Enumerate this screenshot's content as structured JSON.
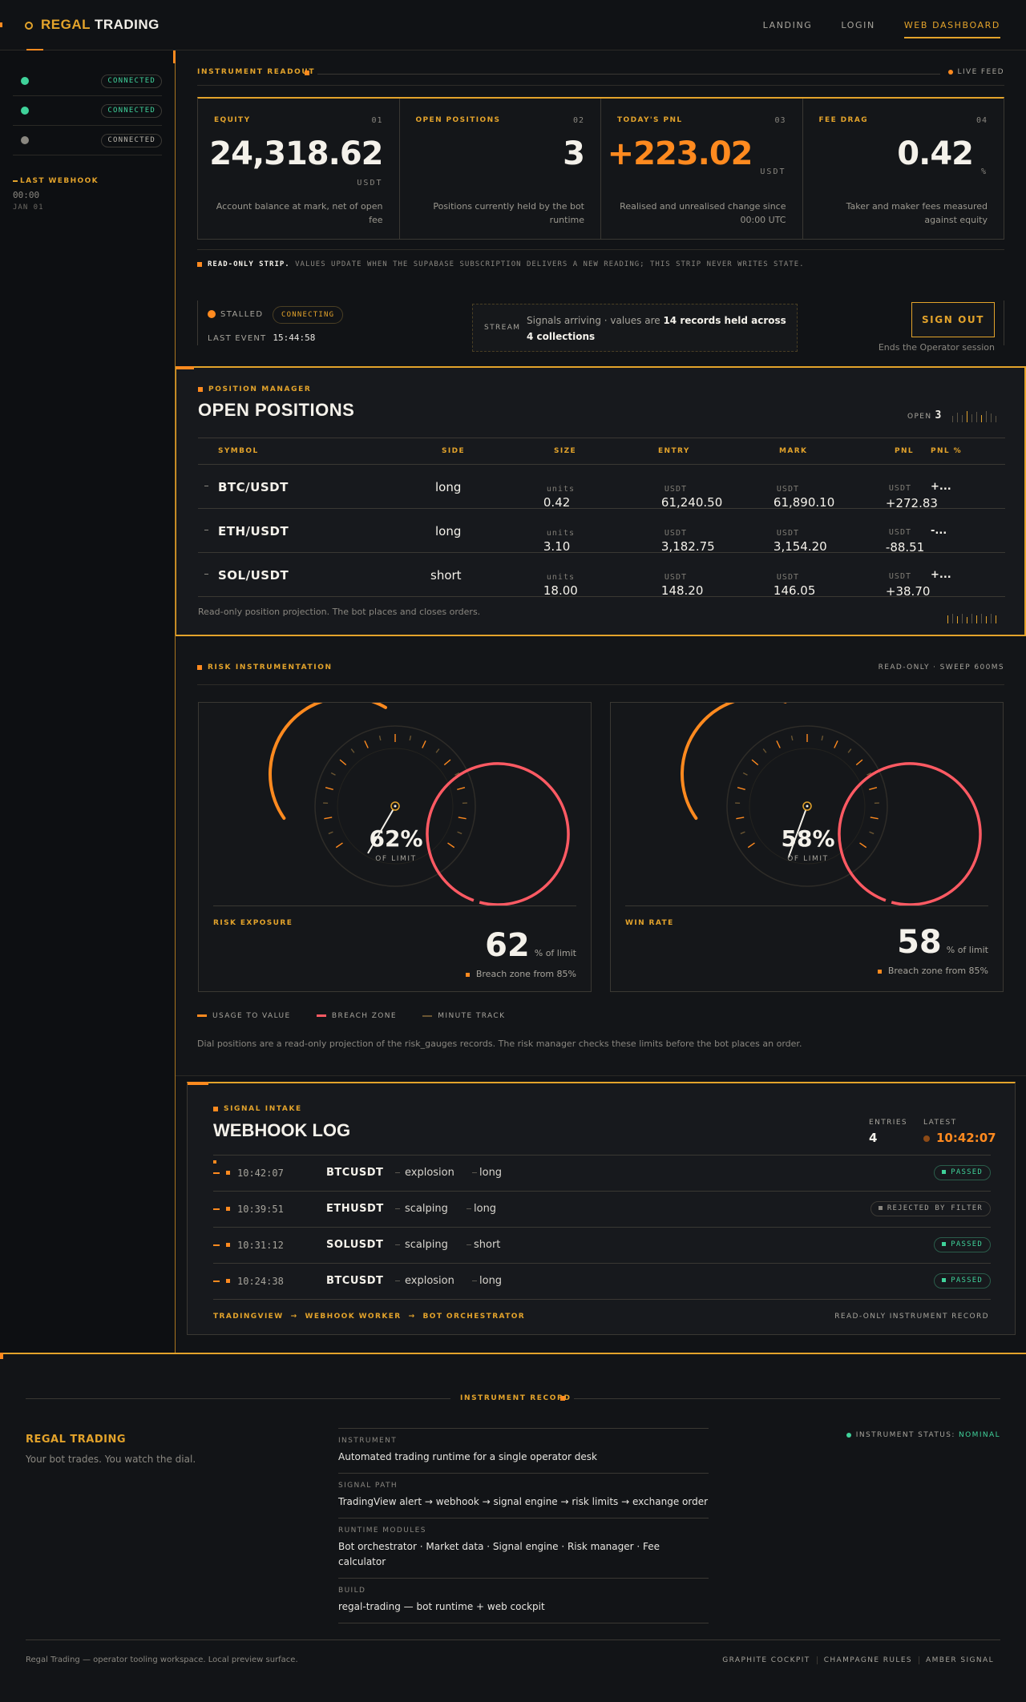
{
  "nav": {
    "brand_a": "REGAL",
    "brand_b": "TRADING",
    "links": [
      "LANDING",
      "LOGIN",
      "WEB DASHBOARD"
    ],
    "active": "WEB DASHBOARD"
  },
  "sidebar": {
    "services": [
      {
        "status": "CONNECTED",
        "dot": "green"
      },
      {
        "status": "CONNECTED",
        "dot": "green"
      },
      {
        "status": "CONNECTED",
        "dot": "grey"
      }
    ],
    "last_webhook_label": "LAST WEBHOOK",
    "last_webhook_time": "00:00",
    "last_webhook_date": "JAN 01"
  },
  "readout": {
    "label": "INSTRUMENT READOUT",
    "live": "LIVE FEED",
    "metrics": [
      {
        "label": "EQUITY",
        "num": "01",
        "value": "24,318.62",
        "unit": "USDT",
        "desc": "Account balance at mark, net of open fee"
      },
      {
        "label": "OPEN POSITIONS",
        "num": "02",
        "value": "3",
        "unit": "",
        "desc": "Positions currently held by the bot runtime"
      },
      {
        "label": "TODAY'S PNL",
        "num": "03",
        "value": "+223.02",
        "unit": "USDT",
        "desc": "Realised and unrealised change since 00:00 UTC"
      },
      {
        "label": "FEE DRAG",
        "num": "04",
        "value": "0.42",
        "unit": "%",
        "desc": "Taker and maker fees measured against equity"
      }
    ],
    "strip_bold": "READ-ONLY STRIP.",
    "strip_text": " VALUES UPDATE WHEN THE SUPABASE SUBSCRIPTION DELIVERS A NEW READING; THIS STRIP NEVER WRITES STATE."
  },
  "status": {
    "stalled": "STALLED",
    "connecting": "CONNECTING",
    "last_event_label": "LAST EVENT",
    "last_event_time": "15:44:58",
    "stream_label": "STREAM",
    "stream_text": "Signals arriving · values are ",
    "stream_bold": "14 records held across 4 collections",
    "signout": "SIGN OUT",
    "signout_sub": "Ends the Operator session"
  },
  "positions": {
    "tag": "POSITION MANAGER",
    "title": "OPEN POSITIONS",
    "open_label": "OPEN",
    "open_count": "3",
    "headers": [
      "SYMBOL",
      "SIDE",
      "SIZE",
      "ENTRY",
      "MARK",
      "PNL",
      "PNL %"
    ],
    "rows": [
      {
        "symbol": "BTC/USDT",
        "side": "long",
        "size": "0.42",
        "size_unit": "units",
        "entry": "61,240.50",
        "mark": "61,890.10",
        "unit": "USDT",
        "pnl": "+272.83",
        "pnl_pct": "+...",
        "positive": true
      },
      {
        "symbol": "ETH/USDT",
        "side": "long",
        "size": "3.10",
        "size_unit": "units",
        "entry": "3,182.75",
        "mark": "3,154.20",
        "unit": "USDT",
        "pnl": "-88.51",
        "pnl_pct": "-...",
        "positive": false
      },
      {
        "symbol": "SOL/USDT",
        "side": "short",
        "size": "18.00",
        "size_unit": "units",
        "entry": "148.20",
        "mark": "146.05",
        "unit": "USDT",
        "pnl": "+38.70",
        "pnl_pct": "+...",
        "positive": true
      }
    ],
    "footnote": "Read-only position projection. The bot places and closes orders."
  },
  "risk": {
    "tag": "RISK INSTRUMENTATION",
    "readonly": "READ-ONLY · SWEEP 600MS",
    "gauges": [
      {
        "label": "RISK EXPOSURE",
        "value": 62,
        "pct_text": "62%",
        "sub": "OF LIMIT",
        "big": "62",
        "big_unit": "% of limit",
        "breach": "Breach zone from 85%"
      },
      {
        "label": "WIN RATE",
        "value": 58,
        "pct_text": "58%",
        "sub": "OF LIMIT",
        "big": "58",
        "big_unit": "% of limit",
        "breach": "Breach zone from 85%"
      }
    ],
    "legend": [
      "USAGE TO VALUE",
      "BREACH ZONE",
      "MINUTE TRACK"
    ],
    "note": "Dial positions are a read-only projection of the risk_gauges records. The risk manager checks these limits before the bot places an order."
  },
  "webhook": {
    "tag": "SIGNAL INTAKE",
    "title": "WEBHOOK LOG",
    "entries_label": "ENTRIES",
    "entries": "4",
    "latest_label": "LATEST",
    "latest": "10:42:07",
    "rows": [
      {
        "time": "10:42:07",
        "symbol": "BTCUSDT",
        "strategy": "explosion",
        "side": "long",
        "status": "PASSED",
        "passed": true
      },
      {
        "time": "10:39:51",
        "symbol": "ETHUSDT",
        "strategy": "scalping",
        "side": "long",
        "status": "REJECTED BY FILTER",
        "passed": false
      },
      {
        "time": "10:31:12",
        "symbol": "SOLUSDT",
        "strategy": "scalping",
        "side": "short",
        "status": "PASSED",
        "passed": true
      },
      {
        "time": "10:24:38",
        "symbol": "BTCUSDT",
        "strategy": "explosion",
        "side": "long",
        "status": "PASSED",
        "passed": true
      }
    ],
    "path": [
      "TRADINGVIEW",
      "WEBHOOK WORKER",
      "BOT ORCHESTRATOR"
    ],
    "record": "READ-ONLY INSTRUMENT RECORD"
  },
  "footer": {
    "record_label": "INSTRUMENT RECORD",
    "brand": "REGAL TRADING",
    "tagline": "Your bot trades. You watch the dial.",
    "info": [
      {
        "k": "INSTRUMENT",
        "v": "Automated trading runtime for a single operator desk"
      },
      {
        "k": "SIGNAL PATH",
        "v": "TradingView alert → webhook → signal engine → risk limits → exchange order"
      },
      {
        "k": "RUNTIME MODULES",
        "v": "Bot orchestrator · Market data · Signal engine · Risk manager · Fee calculator"
      },
      {
        "k": "BUILD",
        "v": "regal-trading — bot runtime + web cockpit"
      }
    ],
    "status_label": "INSTRUMENT STATUS:",
    "status_value": "NOMINAL",
    "copy": "Regal Trading — operator tooling workspace. Local preview surface.",
    "themes": [
      "GRAPHITE COCKPIT",
      "CHAMPAGNE RULES",
      "AMBER SIGNAL"
    ]
  }
}
